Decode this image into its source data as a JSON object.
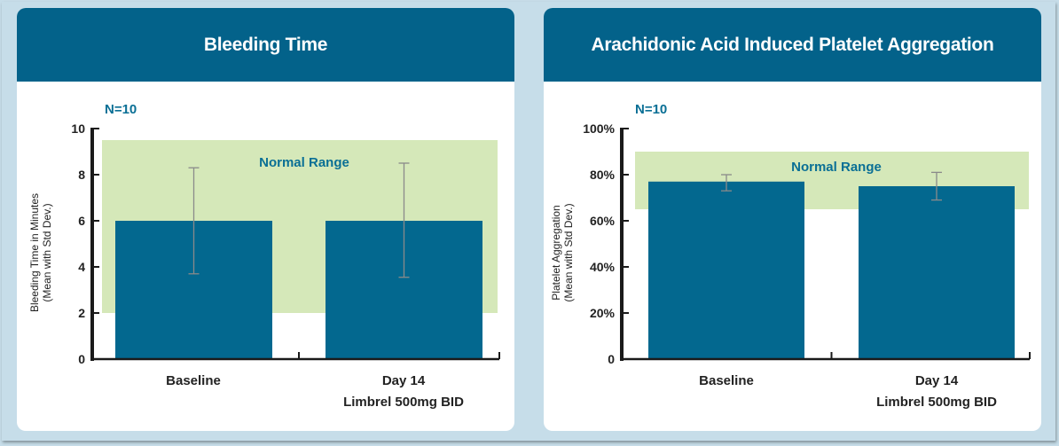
{
  "colors": {
    "bar": "#03688f",
    "normal_range": "#d5e8b9",
    "header": "#03628a",
    "accent_text": "#0a6f95",
    "error_bar": "#8a8a8a"
  },
  "chart_data": [
    {
      "type": "bar",
      "title": "Bleeding Time",
      "annotation": "N=10",
      "ylabel": "Bleeding Time in Minutes",
      "ylabel2": "(Mean with Std Dev.)",
      "ylim": [
        0,
        10
      ],
      "yticks": [
        0,
        2,
        4,
        6,
        8,
        10
      ],
      "ytick_labels": [
        "0",
        "2",
        "4",
        "6",
        "8",
        "10"
      ],
      "categories": [
        "Baseline",
        "Day 14"
      ],
      "category_sublabels": [
        "",
        "Limbrel  500mg BID"
      ],
      "values": [
        6.0,
        6.0
      ],
      "error_low": [
        3.7,
        3.55
      ],
      "error_high": [
        8.3,
        8.5
      ],
      "normal_range": {
        "label": "Normal Range",
        "low": 2.0,
        "high": 9.5
      },
      "grid": false
    },
    {
      "type": "bar",
      "title": "Arachidonic Acid Induced Platelet Aggregation",
      "annotation": "N=10",
      "ylabel": "Platelet Aggregation",
      "ylabel2": "(Mean with Std Dev.)",
      "ylim": [
        0,
        100
      ],
      "yticks": [
        0,
        20,
        40,
        60,
        80,
        100
      ],
      "ytick_labels": [
        "0",
        "20%",
        "40%",
        "60%",
        "80%",
        "100%"
      ],
      "categories": [
        "Baseline",
        "Day 14"
      ],
      "category_sublabels": [
        "",
        "Limbrel  500mg BID"
      ],
      "values": [
        77,
        75
      ],
      "error_low": [
        73,
        69
      ],
      "error_high": [
        80,
        81
      ],
      "normal_range": {
        "label": "Normal Range",
        "low": 65,
        "high": 90
      },
      "grid": false
    }
  ]
}
